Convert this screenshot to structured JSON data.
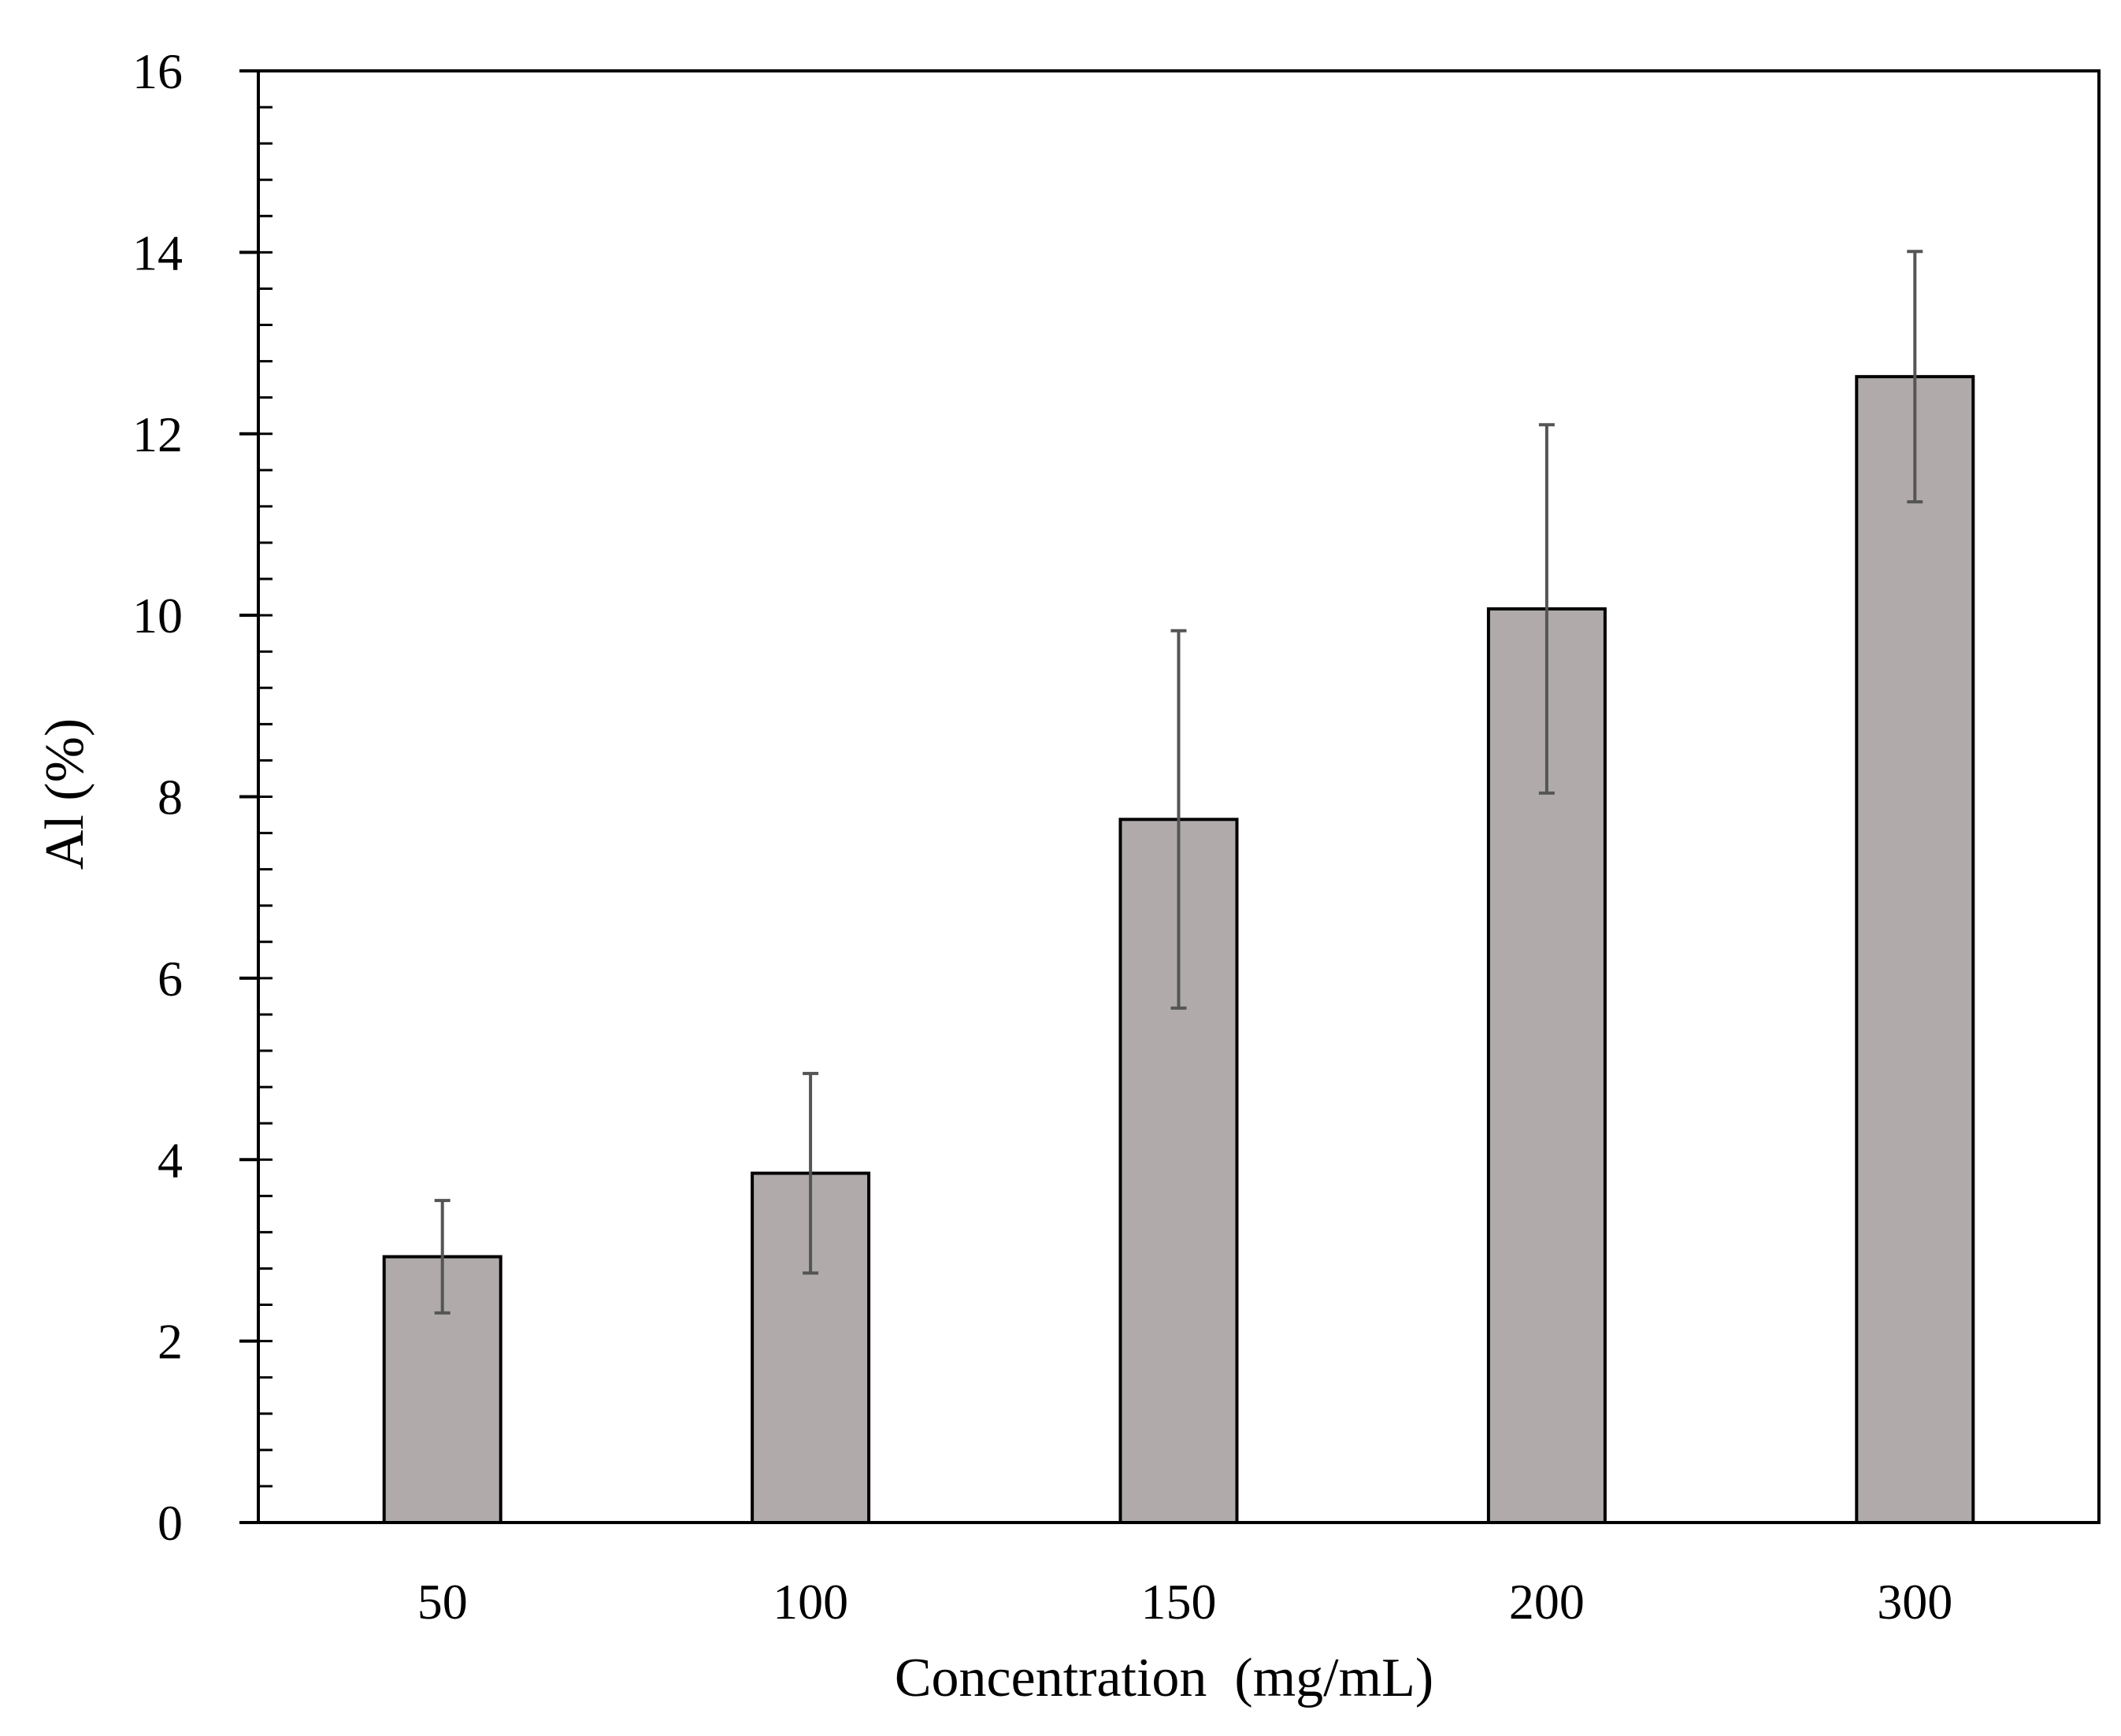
{
  "chart_data": {
    "type": "bar",
    "categories": [
      "50",
      "100",
      "150",
      "200",
      "300"
    ],
    "values": [
      2.93,
      3.85,
      7.75,
      10.07,
      12.63
    ],
    "errors": [
      0.62,
      1.1,
      2.08,
      2.03,
      1.38
    ],
    "xlabel": "Concentration  (mg/mL)",
    "ylabel": "Al (%)",
    "ylim": [
      0,
      16
    ],
    "yticks": [
      0,
      2,
      4,
      6,
      8,
      10,
      12,
      14,
      16
    ],
    "y_minor_step": 0.4,
    "grid": false,
    "legend": "none",
    "colors": {
      "bar_fill": "#b0abaa",
      "bar_stroke": "#000000",
      "error_bar": "#555555",
      "axis": "#000000"
    }
  }
}
